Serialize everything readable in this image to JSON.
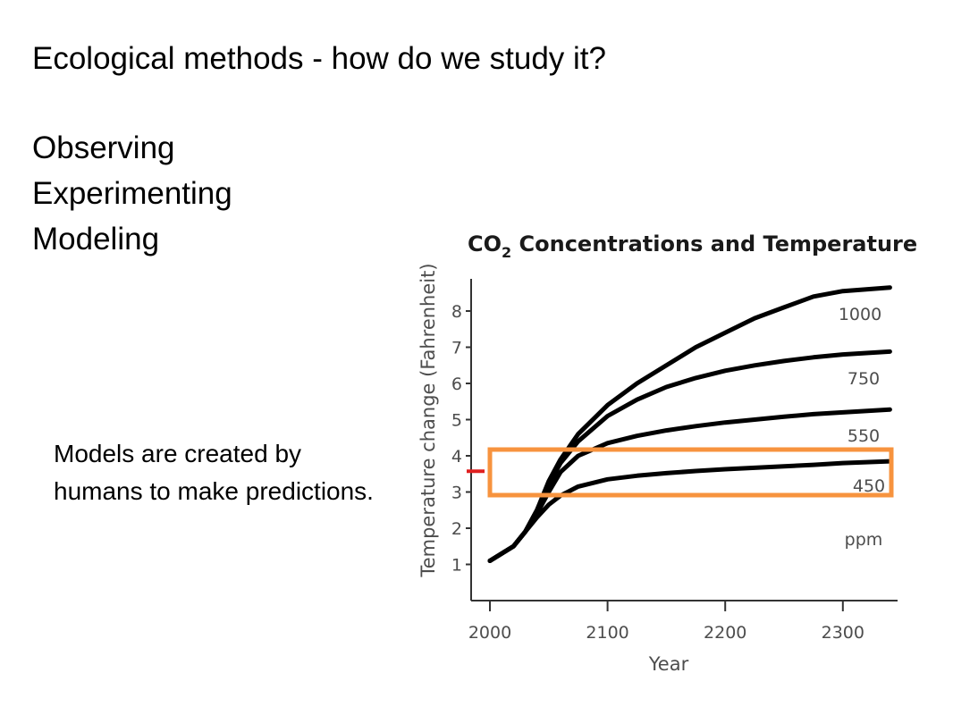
{
  "slide": {
    "title": "Ecological methods - how do we study it?",
    "methods": [
      "Observing",
      "Experimenting",
      "Modeling"
    ],
    "caption": "Models are created by humans to make predictions."
  },
  "chart_data": {
    "type": "line",
    "title_prefix": "CO",
    "title_subscript": "2",
    "title_suffix": " Concentrations and Temperature",
    "xlabel": "Year",
    "ylabel": "Temperature change (Fahrenheit)",
    "xlim": [
      2000,
      2340
    ],
    "ylim": [
      0,
      8.8
    ],
    "x_ticks": [
      2000,
      2100,
      2200,
      2300
    ],
    "y_ticks": [
      1,
      2,
      3,
      4,
      5,
      6,
      7,
      8
    ],
    "units_label": "ppm",
    "series": [
      {
        "name": "1000",
        "x": [
          2000,
          2020,
          2030,
          2040,
          2050,
          2060,
          2075,
          2100,
          2125,
          2150,
          2175,
          2200,
          2225,
          2250,
          2275,
          2300,
          2340
        ],
        "y": [
          1.1,
          1.5,
          1.9,
          2.5,
          3.3,
          3.9,
          4.6,
          5.4,
          6.0,
          6.5,
          7.0,
          7.4,
          7.8,
          8.1,
          8.4,
          8.55,
          8.65
        ]
      },
      {
        "name": "750",
        "x": [
          2000,
          2020,
          2030,
          2040,
          2050,
          2060,
          2075,
          2100,
          2125,
          2150,
          2175,
          2200,
          2225,
          2250,
          2275,
          2300,
          2340
        ],
        "y": [
          1.1,
          1.5,
          1.9,
          2.5,
          3.2,
          3.8,
          4.4,
          5.1,
          5.55,
          5.9,
          6.15,
          6.35,
          6.5,
          6.62,
          6.72,
          6.8,
          6.88
        ]
      },
      {
        "name": "550",
        "x": [
          2000,
          2020,
          2030,
          2040,
          2050,
          2060,
          2075,
          2100,
          2125,
          2150,
          2175,
          2200,
          2225,
          2250,
          2275,
          2300,
          2340
        ],
        "y": [
          1.1,
          1.5,
          1.9,
          2.4,
          3.0,
          3.55,
          4.0,
          4.35,
          4.55,
          4.7,
          4.82,
          4.92,
          5.0,
          5.08,
          5.15,
          5.2,
          5.28
        ]
      },
      {
        "name": "450",
        "x": [
          2000,
          2020,
          2030,
          2040,
          2050,
          2060,
          2075,
          2100,
          2125,
          2150,
          2175,
          2200,
          2225,
          2250,
          2275,
          2300,
          2340
        ],
        "y": [
          1.1,
          1.5,
          1.9,
          2.3,
          2.65,
          2.9,
          3.15,
          3.35,
          3.45,
          3.52,
          3.58,
          3.63,
          3.67,
          3.71,
          3.75,
          3.8,
          3.85
        ]
      }
    ],
    "highlight_box": {
      "x_range": [
        2000,
        2340
      ],
      "y_range": [
        2.8,
        4.2
      ],
      "color": "#f7933e"
    },
    "marker": {
      "y": 3.6,
      "color": "#e02020"
    },
    "line_color": "#000000",
    "axis_color": "#333333"
  }
}
